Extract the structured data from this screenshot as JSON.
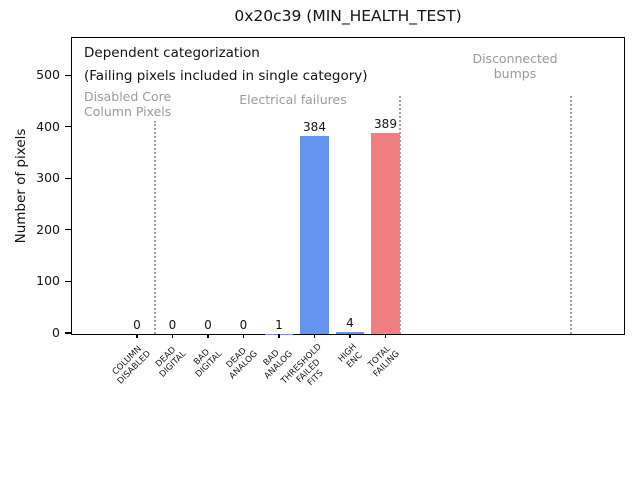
{
  "chart_data": {
    "type": "bar",
    "title": "0x20c39 (MIN_HEALTH_TEST)",
    "ylabel": "Number of pixels",
    "xlabel": "",
    "categories": [
      "COLUMN\nDISABLED",
      "DEAD\nDIGITAL",
      "BAD\nDIGITAL",
      "DEAD\nANALOG",
      "BAD\nANALOG",
      "THRESHOLD\nFAILED\nFITS",
      "HIGH\nENC",
      "TOTAL\nFAILING"
    ],
    "values": [
      0,
      0,
      0,
      0,
      1,
      384,
      4,
      389
    ],
    "value_labels": [
      "0",
      "0",
      "0",
      "0",
      "1",
      "384",
      "4",
      "389"
    ],
    "bar_colors": [
      "#6495ed",
      "#6495ed",
      "#6495ed",
      "#6495ed",
      "#6495ed",
      "#6495ed",
      "#6495ed",
      "#f08080"
    ],
    "yticks": [
      0,
      100,
      200,
      300,
      400,
      500
    ],
    "ylim": [
      0,
      580
    ],
    "grid": false,
    "legend": "none",
    "annotations": {
      "primary": "Dependent categorization",
      "secondary": "(Failing pixels included in single category)",
      "sections": [
        {
          "label": "Disabled Core\nColumn Pixels"
        },
        {
          "label": "Electrical failures"
        },
        {
          "label": "Disconnected\nbumps"
        }
      ]
    },
    "colors": {
      "bar_blue": "#6495ed",
      "bar_red": "#f08080",
      "section_text_gray": "#9b9b9b",
      "dotted_line_gray": "#a0a0a0"
    }
  }
}
